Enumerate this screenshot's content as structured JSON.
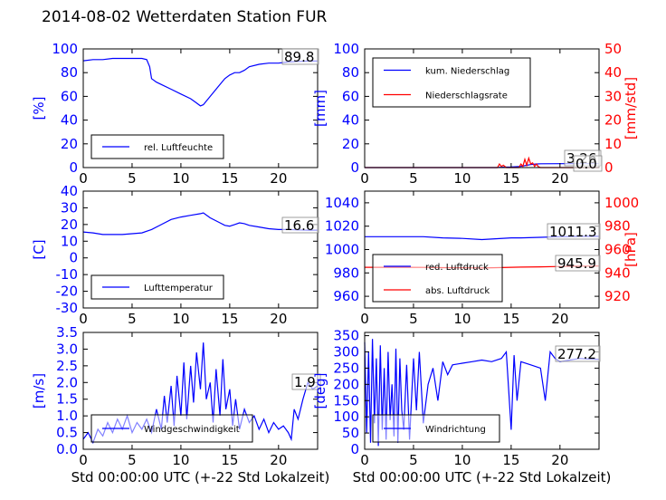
{
  "figure": {
    "title": "2014-08-02 Wetterdaten Station FUR"
  },
  "colors": {
    "blue": "#0000ff",
    "red": "#ff0000",
    "axis": "#000000"
  },
  "chart_data": [
    {
      "type": "line",
      "xlim": [
        0,
        24
      ],
      "ylim": [
        0,
        100
      ],
      "xticks": [
        "0",
        "5",
        "10",
        "15",
        "20"
      ],
      "yticks": [
        "0",
        "20",
        "40",
        "60",
        "80",
        "100"
      ],
      "ylabel": "[%]",
      "legend": "lower-left",
      "grid": false,
      "annotations": [
        "89.8"
      ],
      "series": [
        {
          "name": "rel. Luftfeuchte",
          "color": "#0000ff",
          "x": [
            0,
            1,
            2,
            3,
            4,
            5,
            6,
            6.5,
            6.8,
            7,
            7.5,
            8,
            9,
            10,
            11,
            11.5,
            12,
            12.3,
            13,
            14,
            14.5,
            15,
            15.5,
            16,
            16.5,
            17,
            18,
            19,
            20,
            21,
            22,
            23,
            24
          ],
          "y": [
            90,
            91,
            91,
            92,
            92,
            92,
            92,
            91,
            85,
            75,
            72,
            70,
            66,
            62,
            58,
            55,
            52,
            53,
            60,
            70,
            75,
            78,
            80,
            80,
            82,
            85,
            87,
            88,
            88,
            89,
            89.5,
            89.8,
            89.8
          ]
        }
      ]
    },
    {
      "type": "line",
      "xlim": [
        0,
        24
      ],
      "ylim": [
        0,
        100
      ],
      "y2lim": [
        0,
        50
      ],
      "xticks": [
        "0",
        "5",
        "10",
        "15",
        "20"
      ],
      "yticks": [
        "0",
        "20",
        "40",
        "60",
        "80",
        "100"
      ],
      "y2ticks": [
        "0",
        "10",
        "20",
        "30",
        "40",
        "50"
      ],
      "ylabel": "[mm]",
      "y2label": "[mm/std]",
      "legend": "top-left",
      "grid": false,
      "annotations": [
        "3.26",
        "0.0"
      ],
      "series": [
        {
          "name": "kum. Niederschlag",
          "color": "#0000ff",
          "axis": "left",
          "x": [
            0,
            5,
            10,
            13.5,
            14,
            15,
            16,
            16.5,
            17,
            17.5,
            18,
            20,
            22,
            24
          ],
          "y": [
            0,
            0,
            0,
            0,
            0.3,
            0.5,
            1.0,
            1.8,
            2.5,
            3.0,
            3.2,
            3.26,
            3.26,
            3.26
          ]
        },
        {
          "name": "Niederschlagsrate",
          "color": "#ff0000",
          "axis": "right",
          "x": [
            0,
            5,
            10,
            13.6,
            13.8,
            14.0,
            14.2,
            14.5,
            15,
            15.8,
            16.0,
            16.2,
            16.4,
            16.6,
            16.8,
            17.0,
            17.2,
            17.4,
            17.6,
            17.8,
            18.0,
            19,
            24
          ],
          "y": [
            0,
            0,
            0,
            0,
            1.5,
            0.5,
            1.0,
            0,
            0,
            0,
            1.5,
            0.5,
            3.5,
            1.0,
            4.0,
            1.5,
            2.0,
            0.5,
            1.5,
            0.3,
            0,
            0,
            0
          ]
        }
      ]
    },
    {
      "type": "line",
      "xlim": [
        0,
        24
      ],
      "ylim": [
        -30,
        40
      ],
      "xticks": [
        "0",
        "5",
        "10",
        "15",
        "20"
      ],
      "yticks": [
        "-30",
        "-20",
        "-10",
        "0",
        "10",
        "20",
        "30",
        "40"
      ],
      "ylabel": "[C]",
      "legend": "lower-left",
      "grid": false,
      "annotations": [
        "16.6"
      ],
      "series": [
        {
          "name": "Lufttemperatur",
          "color": "#0000ff",
          "x": [
            0,
            1,
            2,
            3,
            4,
            5,
            6,
            7,
            8,
            9,
            10,
            11,
            12,
            12.3,
            13,
            14,
            14.5,
            15,
            15.5,
            16,
            16.5,
            17,
            18,
            19,
            20,
            21,
            22,
            23,
            24
          ],
          "y": [
            15.5,
            15,
            14,
            14,
            14,
            14.5,
            15,
            17,
            20,
            23,
            24.5,
            25.5,
            26.5,
            27,
            24,
            21,
            19.5,
            19,
            20,
            21,
            20.5,
            19.5,
            18.5,
            17.5,
            17,
            17,
            16.8,
            16.6,
            16.6
          ]
        }
      ]
    },
    {
      "type": "line",
      "xlim": [
        0,
        24
      ],
      "ylim": [
        950,
        1050
      ],
      "y2lim": [
        910,
        1010
      ],
      "xticks": [
        "0",
        "5",
        "10",
        "15",
        "20"
      ],
      "yticks": [
        "960",
        "980",
        "1000",
        "1020",
        "1040"
      ],
      "y2ticks": [
        "920",
        "940",
        "960",
        "980",
        "1000"
      ],
      "y2label": "[hPa]",
      "legend": "lower-left",
      "grid": false,
      "annotations": [
        "1011.3",
        "945.9"
      ],
      "series": [
        {
          "name": "red. Luftdruck",
          "color": "#0000ff",
          "axis": "left",
          "x": [
            0,
            2,
            4,
            6,
            8,
            10,
            12,
            13,
            15,
            16,
            18,
            20,
            22,
            24
          ],
          "y": [
            1011,
            1011,
            1011,
            1011,
            1010,
            1009.5,
            1008.5,
            1009,
            1010,
            1010,
            1010.5,
            1011,
            1011.3,
            1011.3
          ]
        },
        {
          "name": "abs. Luftdruck",
          "color": "#ff0000",
          "axis": "right",
          "x": [
            0,
            2,
            4,
            6,
            8,
            10,
            12,
            13,
            15,
            16,
            18,
            20,
            22,
            24
          ],
          "y": [
            944.8,
            944.8,
            944.8,
            944.7,
            944.5,
            944.4,
            944.3,
            944.4,
            944.8,
            945.0,
            945.2,
            945.5,
            945.8,
            945.9
          ]
        }
      ]
    },
    {
      "type": "line",
      "xlim": [
        0,
        24
      ],
      "ylim": [
        0,
        3.5
      ],
      "xticks": [
        "0",
        "5",
        "10",
        "15",
        "20"
      ],
      "yticks": [
        "0.0",
        "0.5",
        "1.0",
        "1.5",
        "2.0",
        "2.5",
        "3.0",
        "3.5"
      ],
      "xlabel": "Std 00:00:00 UTC (+-22 Std Lokalzeit)",
      "ylabel": "[m/s]",
      "legend": "lower-left",
      "grid": false,
      "annotations": [
        "1.9"
      ],
      "series": [
        {
          "name": "Windgeschwindigkeit",
          "color": "#0000ff",
          "x": [
            0,
            0.5,
            1,
            1.5,
            2,
            2.5,
            3,
            3.5,
            4,
            4.5,
            5,
            5.5,
            6,
            6.5,
            7,
            7.5,
            8,
            8.3,
            8.6,
            9,
            9.3,
            9.6,
            10,
            10.3,
            10.6,
            11,
            11.3,
            11.6,
            12,
            12.3,
            12.6,
            13,
            13.3,
            13.6,
            14,
            14.3,
            14.6,
            15,
            15.3,
            15.6,
            16,
            16.5,
            17,
            17.5,
            18,
            18.5,
            19,
            19.5,
            20,
            20.5,
            21,
            21.3,
            21.6,
            22,
            22.5,
            23,
            23.5,
            24
          ],
          "y": [
            0.3,
            0.5,
            0.2,
            0.6,
            0.4,
            0.8,
            0.5,
            0.9,
            0.6,
            1.0,
            0.5,
            0.8,
            0.6,
            0.9,
            0.5,
            1.2,
            0.6,
            1.6,
            0.8,
            1.9,
            0.7,
            2.2,
            1.0,
            2.6,
            0.9,
            2.5,
            1.4,
            2.9,
            1.8,
            3.2,
            1.5,
            2.0,
            0.8,
            2.4,
            1.0,
            2.7,
            1.2,
            1.8,
            0.7,
            1.5,
            0.6,
            1.2,
            0.8,
            1.0,
            0.6,
            0.9,
            0.5,
            0.8,
            0.6,
            0.7,
            0.5,
            0.3,
            1.2,
            0.9,
            1.5,
            2.0,
            1.8,
            1.9
          ]
        }
      ]
    },
    {
      "type": "line",
      "xlim": [
        0,
        24
      ],
      "ylim": [
        0,
        360
      ],
      "xticks": [
        "0",
        "5",
        "10",
        "15",
        "20"
      ],
      "yticks": [
        "0",
        "50",
        "100",
        "150",
        "200",
        "250",
        "300",
        "350"
      ],
      "xlabel": "Std 00:00:00 UTC (+-22 Std Lokalzeit)",
      "ylabel": "[deg]",
      "legend": "lower-left",
      "grid": false,
      "annotations": [
        "277.2"
      ],
      "series": [
        {
          "name": "Windrichtung",
          "color": "#0000ff",
          "x": [
            0,
            0.2,
            0.4,
            0.6,
            0.8,
            1.0,
            1.2,
            1.4,
            1.6,
            1.8,
            2.0,
            2.2,
            2.4,
            2.6,
            2.8,
            3.0,
            3.2,
            3.4,
            3.6,
            3.8,
            4.0,
            4.3,
            4.6,
            5.0,
            5.3,
            5.6,
            6.0,
            6.5,
            7,
            7.5,
            8,
            8.5,
            9,
            10,
            11,
            12,
            13,
            14,
            14.5,
            15,
            15.3,
            15.6,
            16,
            17,
            18,
            18.5,
            19,
            19.5,
            20,
            21,
            22,
            23,
            24
          ],
          "y": [
            330,
            50,
            300,
            20,
            340,
            80,
            280,
            10,
            320,
            60,
            250,
            30,
            300,
            90,
            200,
            40,
            310,
            20,
            280,
            120,
            60,
            260,
            30,
            280,
            120,
            300,
            80,
            200,
            250,
            150,
            270,
            230,
            260,
            265,
            270,
            275,
            270,
            280,
            300,
            60,
            290,
            150,
            270,
            260,
            250,
            150,
            300,
            280,
            270,
            275,
            280,
            278,
            277.2
          ]
        }
      ]
    }
  ]
}
